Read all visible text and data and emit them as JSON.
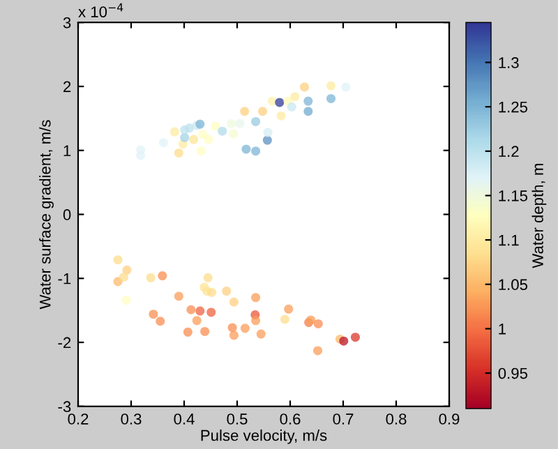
{
  "chart_data": {
    "type": "scatter",
    "xlabel": "Pulse velocity, m/s",
    "ylabel": "Water surface gradient, m/s",
    "clabel": "Water depth, m",
    "annotations": [
      "x 10$^{−4}$"
    ],
    "marker": "circle",
    "grid": false,
    "legend": false,
    "xlim": [
      0.2,
      0.9
    ],
    "xticks": [
      0.2,
      0.3,
      0.4,
      0.5,
      0.6,
      0.7,
      0.8,
      0.9
    ],
    "ylim": [
      -3,
      3
    ],
    "yticks": [
      -3,
      -2,
      -1,
      0,
      1,
      2,
      3
    ],
    "clim": [
      0.91,
      1.345
    ],
    "cticks": [
      0.95,
      1,
      1.05,
      1.1,
      1.15,
      1.2,
      1.25,
      1.3
    ],
    "series": [
      {
        "x": [
          0.318,
          0.318,
          0.361,
          0.382,
          0.39,
          0.398,
          0.401,
          0.401,
          0.41,
          0.418,
          0.424,
          0.43,
          0.432,
          0.435,
          0.446,
          0.459,
          0.472,
          0.489,
          0.493,
          0.505,
          0.514,
          0.517,
          0.535,
          0.535,
          0.548,
          0.557,
          0.558,
          0.566,
          0.58,
          0.583,
          0.596,
          0.603,
          0.609,
          0.627,
          0.634,
          0.634,
          0.677,
          0.677,
          0.705,
          0.275,
          0.292,
          0.275,
          0.286,
          0.291,
          0.337,
          0.359,
          0.342,
          0.355,
          0.39,
          0.413,
          0.43,
          0.424,
          0.407,
          0.439,
          0.445,
          0.438,
          0.443,
          0.452,
          0.451,
          0.48,
          0.494,
          0.491,
          0.494,
          0.515,
          0.535,
          0.534,
          0.535,
          0.545,
          0.59,
          0.597,
          0.635,
          0.639,
          0.653,
          0.652,
          0.694,
          0.701,
          0.723
        ],
        "values": [
          1.01,
          0.92,
          1.12,
          1.29,
          0.96,
          1.1,
          1.2,
          1.32,
          1.35,
          1.17,
          1.39,
          1.41,
          0.99,
          1.25,
          1.17,
          1.38,
          1.3,
          1.42,
          1.26,
          1.42,
          1.61,
          1.02,
          1.45,
          0.99,
          1.61,
          1.16,
          1.28,
          1.77,
          1.75,
          1.54,
          1.77,
          1.68,
          1.84,
          1.99,
          1.77,
          1.61,
          2.01,
          1.81,
          1.99,
          -0.71,
          -0.87,
          -1.05,
          -0.98,
          -1.34,
          -0.99,
          -0.96,
          -1.56,
          -1.67,
          -1.28,
          -1.49,
          -1.51,
          -1.66,
          -1.84,
          -1.83,
          -0.99,
          -1.14,
          -1.2,
          -1.22,
          -1.53,
          -1.2,
          -1.37,
          -1.77,
          -1.89,
          -1.78,
          -1.3,
          -1.57,
          -1.66,
          -1.87,
          -1.64,
          -1.48,
          -1.69,
          -1.65,
          -1.71,
          -2.13,
          -1.95,
          -1.98,
          -1.92
        ],
        "cvalues": [
          1.17,
          1.17,
          1.17,
          1.1,
          1.08,
          1.1,
          1.22,
          1.2,
          1.2,
          1.09,
          1.19,
          1.25,
          1.13,
          1.13,
          1.13,
          1.13,
          1.21,
          1.15,
          1.14,
          1.16,
          1.07,
          1.25,
          1.23,
          1.25,
          1.07,
          1.28,
          1.18,
          1.11,
          1.34,
          1.1,
          1.12,
          1.19,
          1.1,
          1.07,
          1.25,
          1.26,
          1.1,
          1.25,
          1.17,
          1.08,
          1.07,
          1.05,
          1.08,
          1.13,
          1.08,
          1.02,
          1.02,
          1.02,
          1.03,
          1.02,
          0.99,
          1.03,
          1.02,
          1.02,
          1.08,
          1.09,
          1.09,
          1.08,
          0.99,
          1.07,
          1.07,
          1.02,
          1.03,
          1.03,
          1.03,
          0.98,
          1.03,
          1.03,
          1.08,
          1.03,
          1.01,
          1.03,
          1.02,
          1.03,
          1.05,
          0.93,
          0.96
        ]
      }
    ]
  }
}
